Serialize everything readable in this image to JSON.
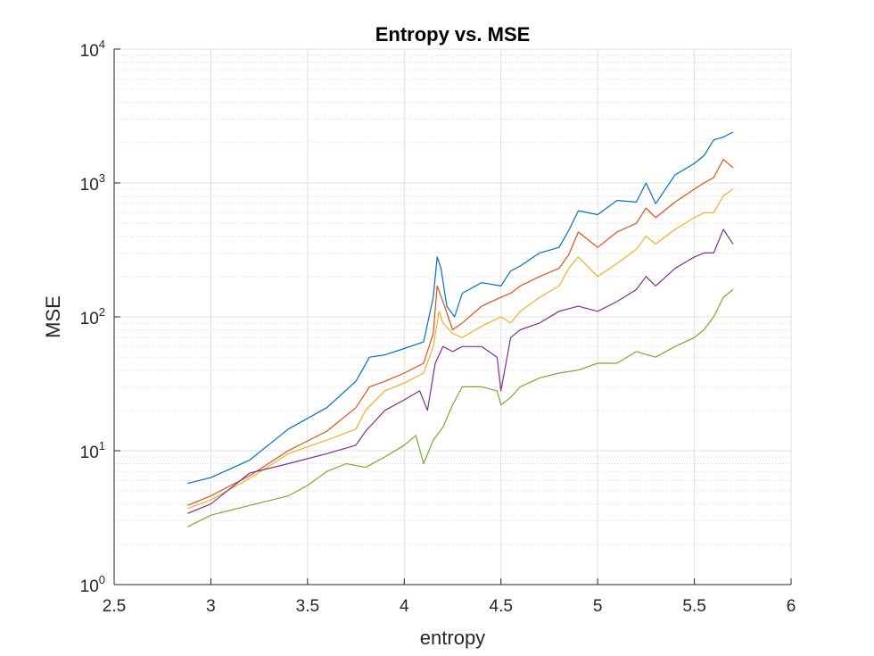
{
  "chart_data": {
    "type": "line",
    "title": "Entropy vs. MSE",
    "xlabel": "entropy",
    "ylabel": "MSE",
    "xlim": [
      2.5,
      6
    ],
    "ylim": [
      1,
      10000
    ],
    "yscale": "log",
    "grid": true,
    "minor_grid_y": true,
    "legend": "none",
    "xticks": [
      2.5,
      3,
      3.5,
      4,
      4.5,
      5,
      5.5,
      6
    ],
    "xtick_labels": [
      "2.5",
      "3",
      "3.5",
      "4",
      "4.5",
      "5",
      "5.5",
      "6"
    ],
    "yticks": [
      {
        "value": 1,
        "base": "10",
        "exp": "0"
      },
      {
        "value": 10,
        "base": "10",
        "exp": "1"
      },
      {
        "value": 100,
        "base": "10",
        "exp": "2"
      },
      {
        "value": 1000,
        "base": "10",
        "exp": "3"
      },
      {
        "value": 10000,
        "base": "10",
        "exp": "4"
      }
    ],
    "series": [
      {
        "color": "#0072BD",
        "x": [
          2.88,
          3.0,
          3.2,
          3.4,
          3.6,
          3.75,
          3.82,
          3.9,
          4.0,
          4.1,
          4.15,
          4.17,
          4.19,
          4.22,
          4.26,
          4.3,
          4.4,
          4.5,
          4.55,
          4.6,
          4.7,
          4.8,
          4.85,
          4.9,
          5.0,
          5.1,
          5.2,
          5.25,
          5.3,
          5.4,
          5.5,
          5.55,
          5.6,
          5.65,
          5.7
        ],
        "y": [
          5.7,
          6.3,
          8.5,
          14.5,
          21,
          33,
          50,
          52,
          58,
          65,
          140,
          280,
          230,
          120,
          100,
          150,
          180,
          170,
          220,
          240,
          300,
          330,
          440,
          620,
          580,
          740,
          720,
          1000,
          700,
          1150,
          1400,
          1600,
          2100,
          2200,
          2400
        ]
      },
      {
        "color": "#D95319",
        "x": [
          2.88,
          3.0,
          3.2,
          3.4,
          3.6,
          3.75,
          3.82,
          3.9,
          4.0,
          4.1,
          4.15,
          4.17,
          4.2,
          4.25,
          4.3,
          4.4,
          4.5,
          4.55,
          4.6,
          4.7,
          4.8,
          4.85,
          4.9,
          5.0,
          5.1,
          5.2,
          5.25,
          5.3,
          5.4,
          5.5,
          5.55,
          5.6,
          5.65,
          5.7
        ],
        "y": [
          3.9,
          4.6,
          6.5,
          10,
          14,
          21,
          30,
          33,
          38,
          45,
          75,
          170,
          130,
          80,
          90,
          120,
          140,
          150,
          170,
          200,
          230,
          290,
          430,
          330,
          430,
          500,
          650,
          550,
          720,
          900,
          1000,
          1100,
          1500,
          1300
        ]
      },
      {
        "color": "#EDB120",
        "x": [
          2.88,
          3.0,
          3.2,
          3.4,
          3.6,
          3.75,
          3.8,
          3.9,
          4.0,
          4.1,
          4.15,
          4.18,
          4.2,
          4.25,
          4.3,
          4.4,
          4.5,
          4.55,
          4.6,
          4.7,
          4.8,
          4.85,
          4.9,
          5.0,
          5.1,
          5.2,
          5.25,
          5.3,
          5.4,
          5.5,
          5.55,
          5.6,
          5.65,
          5.7
        ],
        "y": [
          3.7,
          4.3,
          6.2,
          9.5,
          12,
          14.5,
          20,
          28,
          32,
          38,
          60,
          110,
          90,
          75,
          70,
          85,
          100,
          90,
          110,
          140,
          170,
          230,
          280,
          200,
          250,
          320,
          400,
          350,
          450,
          550,
          600,
          600,
          800,
          900
        ]
      },
      {
        "color": "#7E2F8E",
        "x": [
          2.88,
          3.0,
          3.2,
          3.4,
          3.6,
          3.75,
          3.8,
          3.9,
          4.0,
          4.08,
          4.12,
          4.16,
          4.2,
          4.25,
          4.3,
          4.4,
          4.48,
          4.5,
          4.55,
          4.6,
          4.7,
          4.8,
          4.9,
          5.0,
          5.1,
          5.2,
          5.25,
          5.3,
          5.4,
          5.5,
          5.55,
          5.6,
          5.65,
          5.7
        ],
        "y": [
          3.4,
          4.0,
          6.8,
          8.0,
          9.5,
          11,
          14,
          20,
          24,
          28,
          20,
          45,
          60,
          55,
          60,
          60,
          50,
          28,
          70,
          80,
          90,
          110,
          120,
          110,
          130,
          160,
          200,
          170,
          230,
          280,
          300,
          300,
          450,
          350
        ]
      },
      {
        "color": "#77AC30",
        "x": [
          2.88,
          3.0,
          3.2,
          3.4,
          3.5,
          3.6,
          3.7,
          3.8,
          3.9,
          4.0,
          4.06,
          4.1,
          4.15,
          4.2,
          4.25,
          4.3,
          4.4,
          4.48,
          4.5,
          4.55,
          4.6,
          4.7,
          4.8,
          4.9,
          5.0,
          5.1,
          5.2,
          5.3,
          5.4,
          5.5,
          5.55,
          5.6,
          5.65,
          5.7
        ],
        "y": [
          2.7,
          3.3,
          3.9,
          4.6,
          5.5,
          7,
          8,
          7.5,
          9,
          11,
          13,
          8,
          12,
          15,
          22,
          30,
          30,
          28,
          22,
          25,
          30,
          35,
          38,
          40,
          45,
          45,
          55,
          50,
          60,
          70,
          80,
          100,
          140,
          160
        ]
      }
    ]
  }
}
